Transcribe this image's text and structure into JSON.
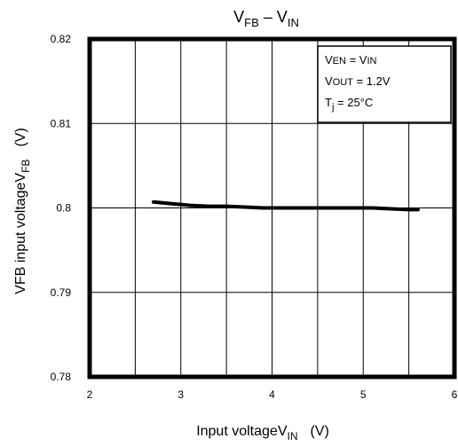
{
  "chart_data": {
    "type": "line",
    "title": {
      "main": "V",
      "sub1": "FB",
      "dash": " – V",
      "sub2": "IN"
    },
    "xlabel": {
      "main": "Input voltage",
      "symbol": "V",
      "sub": "IN",
      "unit": "(V)"
    },
    "ylabel": {
      "main": "VFB input voltage",
      "symbol": "V",
      "sub": "FB",
      "unit": "(V)"
    },
    "xlim": [
      2,
      6
    ],
    "ylim": [
      0.78,
      0.82
    ],
    "xticks": [
      "2",
      "3",
      "4",
      "5",
      "6"
    ],
    "yticks": [
      "0.78",
      "0.79",
      "0.8",
      "0.81",
      "0.82"
    ],
    "grid": true,
    "legend_box": {
      "position": "top-right",
      "lines": [
        {
          "main": "V",
          "sub": "EN",
          "rest": " = V",
          "sub2": "IN"
        },
        {
          "main": "V",
          "sub": "OUT",
          "rest": " = 1.2V",
          "sub2": ""
        },
        {
          "main": "T",
          "sub": "j",
          "rest": " = 25°C",
          "sub2": ""
        }
      ]
    },
    "series": [
      {
        "x": [
          2.7,
          2.9,
          3.1,
          3.3,
          3.5,
          3.7,
          3.9,
          4.1,
          4.3,
          4.5,
          4.7,
          4.9,
          5.1,
          5.3,
          5.5,
          5.6
        ],
        "y": [
          0.8007,
          0.8005,
          0.8003,
          0.8002,
          0.8002,
          0.8001,
          0.8,
          0.8,
          0.8,
          0.8,
          0.8,
          0.8,
          0.8,
          0.7999,
          0.7998,
          0.7998
        ]
      }
    ]
  }
}
